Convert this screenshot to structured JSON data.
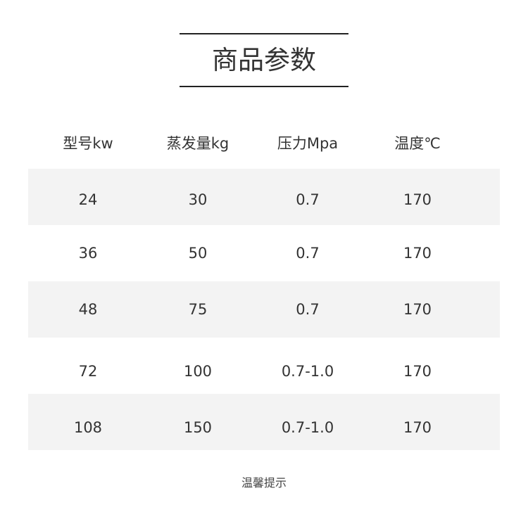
{
  "title": "商品参数",
  "table": {
    "headers": [
      "型号kw",
      "蒸发量kg",
      "压力Mpa",
      "温度℃"
    ],
    "rows": [
      [
        "24",
        "30",
        "0.7",
        "170"
      ],
      [
        "36",
        "50",
        "0.7",
        "170"
      ],
      [
        "48",
        "75",
        "0.7",
        "170"
      ],
      [
        "72",
        "100",
        "0.7-1.0",
        "170"
      ],
      [
        "108",
        "150",
        "0.7-1.0",
        "170"
      ]
    ]
  },
  "footer": "温馨提示",
  "colors": {
    "row_shade": "#f3f3f3",
    "text": "#333333",
    "rule": "#222222"
  }
}
